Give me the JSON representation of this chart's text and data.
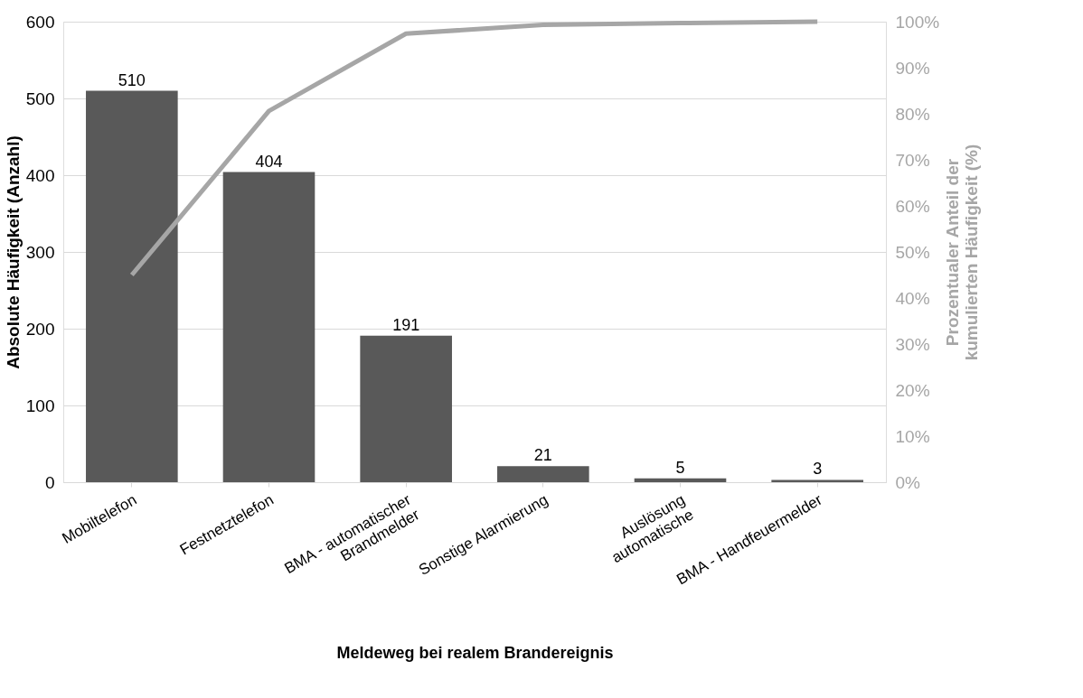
{
  "chart_data": {
    "type": "bar",
    "xlabel": "Meldeweg bei realem Brandereignis",
    "ylabel": "Absolute Häufigkeit (Anzahl)",
    "y2label": "Prozentualer Anteil der\nkumulierten Häufigkeit (%)",
    "categories": [
      "Mobiltelefon",
      "Festnetztelefon",
      "BMA - automatischer\nBrandmelder",
      "Sonstige Alarmierung",
      "Auslösung\nautomatische",
      "BMA - Handfeuermelder"
    ],
    "series": [
      {
        "color": "#595959",
        "data_labels": true,
        "values": [
          510,
          404,
          191,
          21,
          5,
          3
        ]
      },
      {
        "type": "line",
        "axis": "y2",
        "color": "#a6a6a6",
        "values": [
          45.0,
          80.6,
          97.4,
          99.3,
          99.7,
          100
        ]
      }
    ],
    "ylim": [
      0,
      600
    ],
    "yticks": [
      0,
      100,
      200,
      300,
      400,
      500,
      600
    ],
    "y2lim": [
      0,
      100
    ],
    "y2ticks": [
      {
        "value": 0,
        "label": "0%"
      },
      {
        "value": 10,
        "label": "10%"
      },
      {
        "value": 20,
        "label": "20%"
      },
      {
        "value": 30,
        "label": "30%"
      },
      {
        "value": 40,
        "label": "40%"
      },
      {
        "value": 50,
        "label": "50%"
      },
      {
        "value": 60,
        "label": "60%"
      },
      {
        "value": 70,
        "label": "70%"
      },
      {
        "value": 80,
        "label": "80%"
      },
      {
        "value": 90,
        "label": "90%"
      },
      {
        "value": 100,
        "label": "100%"
      }
    ],
    "grid": "y"
  }
}
